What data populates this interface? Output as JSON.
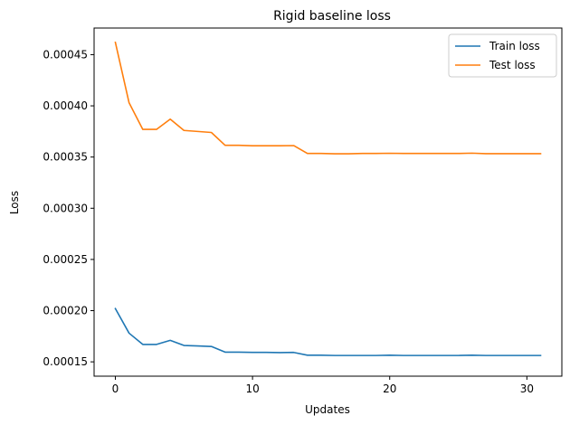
{
  "chart_data": {
    "type": "line",
    "title": "Rigid baseline loss",
    "xlabel": "Updates",
    "ylabel": "Loss",
    "xlim": [
      -1.55,
      32.55
    ],
    "ylim": [
      0.000136,
      0.000476
    ],
    "xticks": [
      0,
      10,
      20,
      30
    ],
    "xtick_labels": [
      "0",
      "10",
      "20",
      "30"
    ],
    "yticks": [
      0.00015,
      0.0002,
      0.00025,
      0.0003,
      0.00035,
      0.0004,
      0.00045
    ],
    "ytick_labels": [
      "0.00015",
      "0.00020",
      "0.00025",
      "0.00030",
      "0.00035",
      "0.00040",
      "0.00045"
    ],
    "grid": false,
    "legend_position": "top-right",
    "x": [
      0,
      1,
      2,
      3,
      4,
      5,
      6,
      7,
      8,
      9,
      10,
      11,
      12,
      13,
      14,
      15,
      16,
      17,
      18,
      19,
      20,
      21,
      22,
      23,
      24,
      25,
      26,
      27,
      28,
      29,
      30,
      31
    ],
    "series": [
      {
        "name": "Train loss",
        "color": "#1f77b4",
        "values": [
          0.000202,
          0.000178,
          0.000167,
          0.000167,
          0.000171,
          0.000166,
          0.0001655,
          0.000165,
          0.0001595,
          0.0001595,
          0.0001592,
          0.0001592,
          0.000159,
          0.0001592,
          0.0001565,
          0.0001565,
          0.0001562,
          0.0001562,
          0.0001562,
          0.0001562,
          0.0001565,
          0.0001562,
          0.0001562,
          0.0001562,
          0.0001562,
          0.0001562,
          0.0001565,
          0.0001562,
          0.0001562,
          0.0001562,
          0.0001562,
          0.0001562
        ]
      },
      {
        "name": "Test loss",
        "color": "#ff7f0e",
        "values": [
          0.000462,
          0.000403,
          0.000377,
          0.000377,
          0.000387,
          0.000376,
          0.000375,
          0.000374,
          0.0003615,
          0.0003615,
          0.000361,
          0.000361,
          0.000361,
          0.0003612,
          0.0003535,
          0.0003535,
          0.0003532,
          0.0003532,
          0.0003535,
          0.0003535,
          0.0003537,
          0.0003535,
          0.0003535,
          0.0003535,
          0.0003535,
          0.0003535,
          0.0003538,
          0.0003533,
          0.0003533,
          0.0003533,
          0.0003533,
          0.0003533
        ]
      }
    ]
  }
}
